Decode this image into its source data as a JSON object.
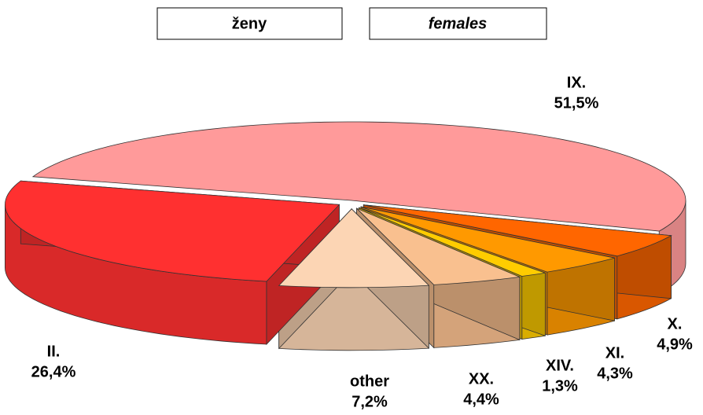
{
  "chart_data": {
    "type": "pie3d",
    "title": "ženy",
    "subtitle": "females",
    "categories": [
      "IX.",
      "X.",
      "XI.",
      "XIV.",
      "XX.",
      "other",
      "II."
    ],
    "values": [
      51.5,
      4.9,
      4.3,
      1.3,
      4.4,
      7.2,
      26.4
    ],
    "value_labels": [
      "51,5%",
      "4,9%",
      "4,3%",
      "1,3%",
      "4,4%",
      "7,2%",
      "26,4%"
    ],
    "colors": [
      "#ff9a9a",
      "#ff6600",
      "#ff9900",
      "#ffcc00",
      "#f9c08f",
      "#fcd5b4",
      "#ff3030"
    ]
  }
}
